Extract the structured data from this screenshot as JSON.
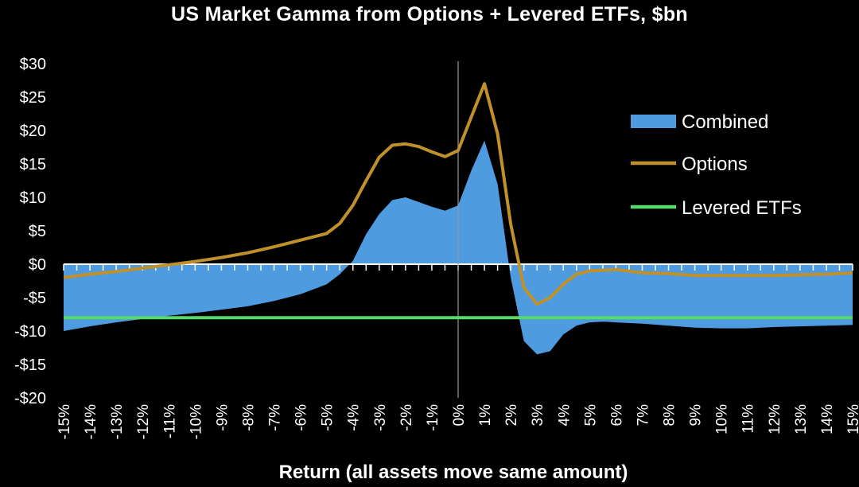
{
  "chart_data": {
    "type": "area",
    "title": "US Market Gamma from Options + Levered ETFs, $bn",
    "xlabel": "Return (all assets move same amount)",
    "ylabel": "",
    "ylim": [
      -20,
      30
    ],
    "y_ticks": [
      30,
      25,
      20,
      15,
      10,
      5,
      0,
      -5,
      -10,
      -15,
      -20
    ],
    "y_tick_labels": [
      "$30",
      "$25",
      "$20",
      "$15",
      "$10",
      "$5",
      "$0",
      "-$5",
      "-$10",
      "-$15",
      "-$20"
    ],
    "x_tick_labels": [
      "-15%",
      "-14%",
      "-13%",
      "-12%",
      "-11%",
      "-10%",
      "-9%",
      "-8%",
      "-7%",
      "-6%",
      "-5%",
      "-4%",
      "-3%",
      "-2%",
      "-1%",
      "0%",
      "1%",
      "2%",
      "3%",
      "4%",
      "5%",
      "6%",
      "7%",
      "8%",
      "9%",
      "10%",
      "11%",
      "12%",
      "13%",
      "14%",
      "15%"
    ],
    "x_unit": "percent return",
    "xlim": [
      -15,
      15
    ],
    "grid": false,
    "vertical_marker_x": 0,
    "legend_position": "right",
    "series": [
      {
        "name": "Combined",
        "style": "area",
        "color": "#4f9be0",
        "x": [
          -15,
          -14,
          -13,
          -12,
          -11,
          -10,
          -9,
          -8,
          -7,
          -6,
          -5,
          -4.5,
          -4,
          -3.5,
          -3,
          -2.5,
          -2,
          -1.5,
          -1,
          -0.5,
          0,
          0.5,
          1,
          1.5,
          2,
          2.5,
          3,
          3.5,
          4,
          4.5,
          5,
          5.5,
          6,
          7,
          8,
          9,
          10,
          11,
          12,
          13,
          14,
          15
        ],
        "values": [
          -10,
          -9.3,
          -8.7,
          -8.2,
          -7.7,
          -7.3,
          -6.8,
          -6.3,
          -5.5,
          -4.5,
          -3,
          -1.5,
          0.5,
          4.5,
          7.5,
          9.6,
          10,
          9.3,
          8.6,
          8,
          8.8,
          14,
          18.5,
          12,
          -2,
          -11.5,
          -13.5,
          -13,
          -10.5,
          -9.2,
          -8.7,
          -8.6,
          -8.7,
          -8.9,
          -9.2,
          -9.5,
          -9.6,
          -9.6,
          -9.4,
          -9.3,
          -9.2,
          -9.1
        ]
      },
      {
        "name": "Options",
        "style": "line",
        "color": "#c0902a",
        "x": [
          -15,
          -14,
          -13,
          -12,
          -11,
          -10,
          -9,
          -8,
          -7,
          -6,
          -5,
          -4.5,
          -4,
          -3.5,
          -3,
          -2.5,
          -2,
          -1.5,
          -1,
          -0.5,
          0,
          0.5,
          1,
          1.5,
          2,
          2.5,
          3,
          3.5,
          4,
          4.5,
          5,
          6,
          7,
          8,
          9,
          10,
          11,
          12,
          13,
          14,
          15
        ],
        "values": [
          -2,
          -1.5,
          -1.1,
          -0.6,
          -0.1,
          0.4,
          1,
          1.7,
          2.6,
          3.6,
          4.6,
          6.1,
          8.8,
          12.5,
          16,
          17.8,
          18,
          17.6,
          16.8,
          16.1,
          17,
          22,
          27,
          19.5,
          6,
          -3.5,
          -6,
          -5,
          -3,
          -1.5,
          -1,
          -0.8,
          -1.3,
          -1.4,
          -1.7,
          -1.7,
          -1.7,
          -1.7,
          -1.6,
          -1.5,
          -1.3
        ]
      },
      {
        "name": "Levered ETFs",
        "style": "line",
        "color": "#57d96b",
        "x": [
          -15,
          15
        ],
        "values": [
          -8,
          -8
        ]
      }
    ]
  }
}
